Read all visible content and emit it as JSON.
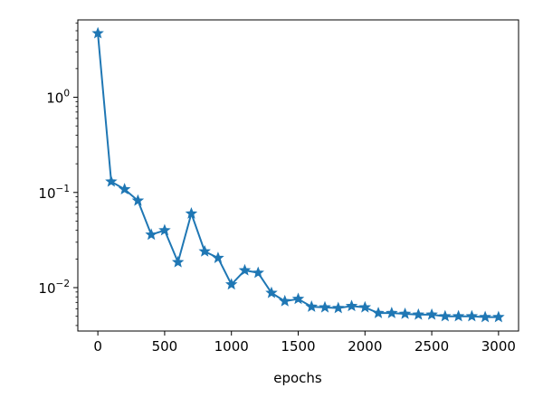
{
  "chart_data": {
    "type": "line",
    "title": "",
    "xlabel": "epochs",
    "ylabel": "",
    "yscale": "log",
    "xlim": [
      -150,
      3150
    ],
    "ylim": [
      0.0035,
      6.5
    ],
    "grid": false,
    "legend": "none",
    "marker": "star",
    "line_color": "#1f77b4",
    "x_ticks": [
      0,
      500,
      1000,
      1500,
      2000,
      2500,
      3000
    ],
    "x_tick_labels": [
      "0",
      "500",
      "1000",
      "1500",
      "2000",
      "2500",
      "3000"
    ],
    "y_ticks": [
      1,
      0.1,
      0.01
    ],
    "y_tick_labels": [
      {
        "base": "10",
        "exp": "0"
      },
      {
        "base": "10",
        "exp": "−1"
      },
      {
        "base": "10",
        "exp": "−2"
      }
    ],
    "series": [
      {
        "x": [
          0,
          100,
          200,
          300,
          400,
          500,
          600,
          700,
          800,
          900,
          1000,
          1100,
          1200,
          1300,
          1400,
          1500,
          1600,
          1700,
          1800,
          1900,
          2000,
          2100,
          2200,
          2300,
          2400,
          2500,
          2600,
          2700,
          2800,
          2900,
          3000
        ],
        "y": [
          4.7,
          0.13,
          0.108,
          0.082,
          0.036,
          0.04,
          0.0185,
          0.06,
          0.024,
          0.0205,
          0.0108,
          0.0152,
          0.0143,
          0.0088,
          0.0072,
          0.0076,
          0.0063,
          0.0062,
          0.0061,
          0.0064,
          0.0062,
          0.0054,
          0.0054,
          0.0053,
          0.0052,
          0.0052,
          0.005,
          0.005,
          0.005,
          0.0049,
          0.0049
        ]
      }
    ]
  }
}
